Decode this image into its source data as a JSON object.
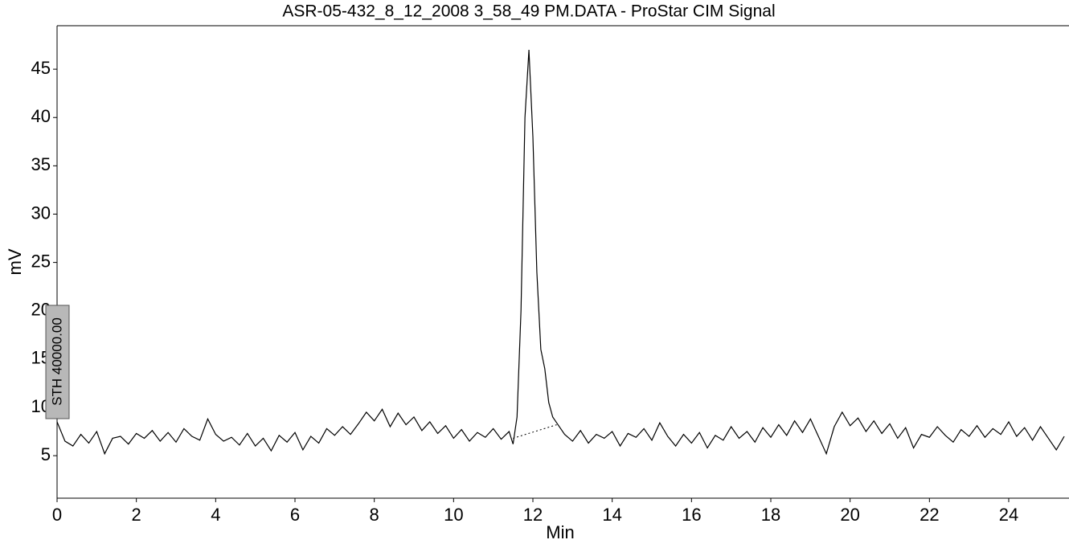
{
  "chart_data": {
    "type": "line",
    "title": "ASR-05-432_8_12_2008 3_58_49 PM.DATA - ProStar CIM Signal",
    "x_label": "Min",
    "y_label": "mV",
    "xlim": [
      0,
      25.5
    ],
    "ylim": [
      0.6,
      49.5
    ],
    "xticks": [
      0,
      2,
      4,
      6,
      8,
      10,
      12,
      14,
      16,
      18,
      20,
      22,
      24
    ],
    "yticks": [
      5,
      10,
      15,
      20,
      25,
      30,
      35,
      40,
      45
    ],
    "x": [
      0.0,
      0.2,
      0.4,
      0.6,
      0.8,
      1.0,
      1.2,
      1.4,
      1.6,
      1.8,
      2.0,
      2.2,
      2.4,
      2.6,
      2.8,
      3.0,
      3.2,
      3.4,
      3.6,
      3.8,
      4.0,
      4.2,
      4.4,
      4.6,
      4.8,
      5.0,
      5.2,
      5.4,
      5.6,
      5.8,
      6.0,
      6.2,
      6.4,
      6.6,
      6.8,
      7.0,
      7.2,
      7.4,
      7.6,
      7.8,
      8.0,
      8.2,
      8.4,
      8.6,
      8.8,
      9.0,
      9.2,
      9.4,
      9.6,
      9.8,
      10.0,
      10.2,
      10.4,
      10.6,
      10.8,
      11.0,
      11.2,
      11.4,
      11.5,
      11.6,
      11.7,
      11.8,
      11.9,
      12.0,
      12.1,
      12.2,
      12.3,
      12.4,
      12.5,
      12.6,
      12.8,
      13.0,
      13.2,
      13.4,
      13.6,
      13.8,
      14.0,
      14.2,
      14.4,
      14.6,
      14.8,
      15.0,
      15.2,
      15.4,
      15.6,
      15.8,
      16.0,
      16.2,
      16.4,
      16.6,
      16.8,
      17.0,
      17.2,
      17.4,
      17.6,
      17.8,
      18.0,
      18.2,
      18.4,
      18.6,
      18.8,
      19.0,
      19.2,
      19.4,
      19.6,
      19.8,
      20.0,
      20.2,
      20.4,
      20.6,
      20.8,
      21.0,
      21.2,
      21.4,
      21.6,
      21.8,
      22.0,
      22.2,
      22.4,
      22.6,
      22.8,
      23.0,
      23.2,
      23.4,
      23.6,
      23.8,
      24.0,
      24.2,
      24.4,
      24.6,
      24.8,
      25.0,
      25.2,
      25.4
    ],
    "series": [
      {
        "color": "#000000",
        "values": [
          8.5,
          6.5,
          6.0,
          7.2,
          6.3,
          7.5,
          5.2,
          6.8,
          7.0,
          6.2,
          7.3,
          6.8,
          7.6,
          6.5,
          7.4,
          6.4,
          7.8,
          7.0,
          6.6,
          8.8,
          7.2,
          6.5,
          6.9,
          6.1,
          7.3,
          6.0,
          6.8,
          5.5,
          7.1,
          6.4,
          7.4,
          5.6,
          7.0,
          6.3,
          7.8,
          7.1,
          8.0,
          7.2,
          8.3,
          9.5,
          8.6,
          9.8,
          8.0,
          9.4,
          8.2,
          9.0,
          7.6,
          8.5,
          7.3,
          8.1,
          6.8,
          7.7,
          6.5,
          7.4,
          6.9,
          7.8,
          6.7,
          7.5,
          6.2,
          9.0,
          20,
          40,
          47,
          38,
          24,
          16,
          14,
          10.5,
          9.0,
          8.4,
          7.2,
          6.5,
          7.6,
          6.3,
          7.2,
          6.8,
          7.5,
          6.0,
          7.3,
          6.9,
          7.8,
          6.6,
          8.4,
          7.0,
          6.0,
          7.2,
          6.3,
          7.4,
          5.8,
          7.1,
          6.6,
          8.0,
          6.8,
          7.5,
          6.4,
          7.9,
          6.9,
          8.2,
          7.1,
          8.6,
          7.4,
          8.8,
          7.0,
          5.2,
          8.0,
          9.5,
          8.1,
          8.9,
          7.5,
          8.6,
          7.3,
          8.3,
          6.8,
          7.9,
          5.8,
          7.2,
          6.9,
          8.0,
          7.1,
          6.4,
          7.7,
          7.0,
          8.1,
          6.9,
          7.8,
          7.2,
          8.5,
          7.0,
          7.9,
          6.6,
          8.0,
          6.8,
          5.6,
          7.0
        ]
      }
    ],
    "baseline": {
      "x": [
        11.5,
        12.6
      ],
      "values": [
        6.8,
        8.2
      ]
    },
    "annotation": "STH 40000.00"
  }
}
